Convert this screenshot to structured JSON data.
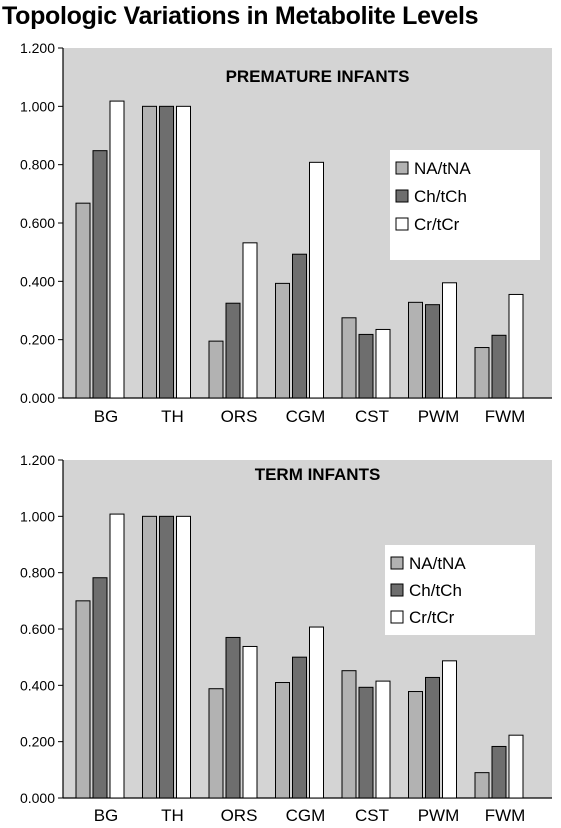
{
  "page_title": "Topologic Variations in Metabolite Levels",
  "colors": {
    "plot_bg": "#d4d4d4",
    "series": [
      "#b2b2b2",
      "#6e6e6e",
      "#ffffff"
    ],
    "frame": "#000000"
  },
  "chart_data": [
    {
      "type": "bar",
      "title": "PREMATURE INFANTS",
      "categories": [
        "BG",
        "TH",
        "ORS",
        "CGM",
        "CST",
        "PWM",
        "FWM"
      ],
      "series": [
        {
          "name": "NA/tNA",
          "values": [
            0.668,
            1.0,
            0.195,
            0.393,
            0.275,
            0.328,
            0.173
          ]
        },
        {
          "name": "Ch/tCh",
          "values": [
            0.848,
            1.0,
            0.325,
            0.493,
            0.218,
            0.32,
            0.215
          ]
        },
        {
          "name": "Cr/tCr",
          "values": [
            1.018,
            1.0,
            0.532,
            0.808,
            0.235,
            0.395,
            0.355
          ]
        }
      ],
      "ylim": [
        0,
        1.2
      ],
      "yticks": [
        "0.000",
        "0.200",
        "0.400",
        "0.600",
        "0.800",
        "1.000",
        "1.200"
      ],
      "xlabel": "",
      "ylabel": "",
      "grid": false,
      "legend_position": "right-middle"
    },
    {
      "type": "bar",
      "title": "TERM INFANTS",
      "categories": [
        "BG",
        "TH",
        "ORS",
        "CGM",
        "CST",
        "PWM",
        "FWM"
      ],
      "series": [
        {
          "name": "NA/tNA",
          "values": [
            0.7,
            1.0,
            0.388,
            0.41,
            0.452,
            0.378,
            0.09
          ]
        },
        {
          "name": "Ch/tCh",
          "values": [
            0.782,
            1.0,
            0.57,
            0.5,
            0.393,
            0.428,
            0.183
          ]
        },
        {
          "name": "Cr/tCr",
          "values": [
            1.008,
            1.0,
            0.538,
            0.607,
            0.415,
            0.487,
            0.223
          ]
        }
      ],
      "ylim": [
        0,
        1.2
      ],
      "yticks": [
        "0.000",
        "0.200",
        "0.400",
        "0.600",
        "0.800",
        "1.000",
        "1.200"
      ],
      "xlabel": "",
      "ylabel": "",
      "grid": false,
      "legend_position": "right-middle"
    }
  ]
}
